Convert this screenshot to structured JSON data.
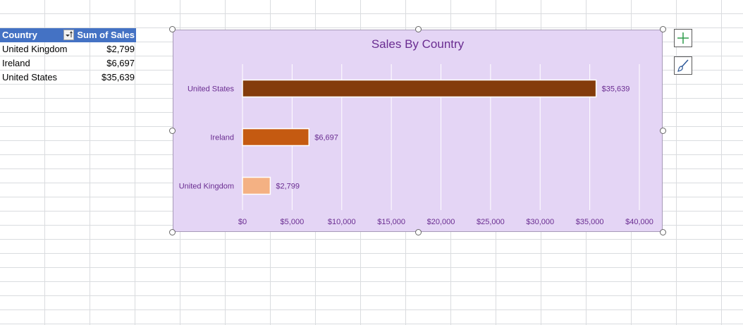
{
  "pivot": {
    "header": {
      "col1": "Country",
      "col2": "Sum of Sales"
    },
    "rows": [
      {
        "country": "United Kingdom",
        "sales": "$2,799"
      },
      {
        "country": "Ireland",
        "sales": "$6,697"
      },
      {
        "country": "United States",
        "sales": "$35,639"
      }
    ]
  },
  "chart_data": {
    "type": "bar",
    "orientation": "horizontal",
    "title": "Sales By Country",
    "categories": [
      "United States",
      "Ireland",
      "United Kingdom"
    ],
    "values": [
      35639,
      6697,
      2799
    ],
    "data_labels": [
      "$35,639",
      "$6,697",
      "$2,799"
    ],
    "bar_colors": [
      "#843c0c",
      "#c55a11",
      "#f4b183"
    ],
    "x_ticks": [
      "$0",
      "$5,000",
      "$10,000",
      "$15,000",
      "$20,000",
      "$25,000",
      "$30,000",
      "$35,000",
      "$40,000"
    ],
    "xlim": [
      0,
      40000
    ],
    "grid": true,
    "background": "#e4d5f5",
    "text_color": "#6a2d91"
  },
  "side_buttons": {
    "chart_elements_icon": "plus-icon",
    "chart_styles_icon": "paintbrush-icon"
  }
}
